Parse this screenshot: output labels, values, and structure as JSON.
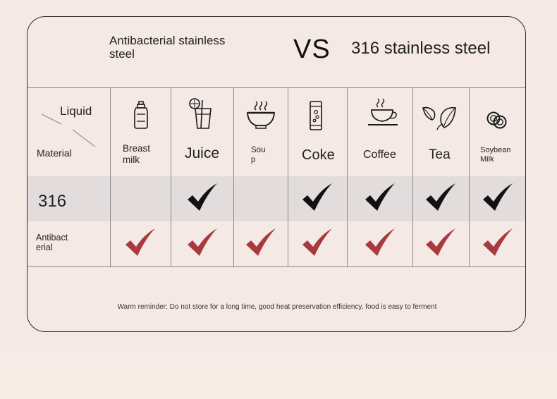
{
  "header": {
    "left_title": "Antibacterial stainless steel",
    "vs": "VS",
    "right_title": "316 stainless steel"
  },
  "table": {
    "corner": {
      "liquid": "Liquid",
      "material": "Material"
    },
    "columns": [
      {
        "label": "Breast milk",
        "icon": "baby-bottle-icon"
      },
      {
        "label": "Juice",
        "icon": "juice-glass-icon"
      },
      {
        "label": "Sou p",
        "icon": "soup-bowl-icon"
      },
      {
        "label": "Coke",
        "icon": "soda-can-icon"
      },
      {
        "label": "Coffee",
        "icon": "coffee-cup-icon"
      },
      {
        "label": "Tea",
        "icon": "tea-leaf-icon"
      },
      {
        "label": "Soybean Milk",
        "icon": "soybeans-icon"
      }
    ],
    "rows": [
      {
        "label": "316",
        "check_color": "#111111",
        "checks": [
          false,
          true,
          false,
          true,
          true,
          true,
          true
        ]
      },
      {
        "label": "Antibact erial",
        "check_color": "#a83a3e",
        "checks": [
          true,
          true,
          true,
          true,
          true,
          true,
          true
        ]
      }
    ]
  },
  "reminder": "Warm reminder: Do not store for a long time, good heat preservation efficiency, food is easy to ferment"
}
